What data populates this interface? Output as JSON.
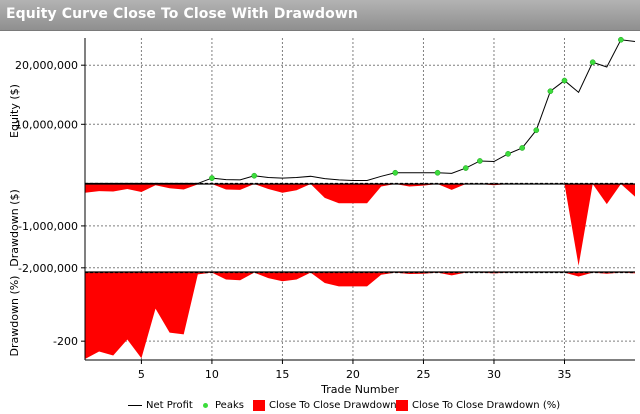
{
  "title": "Equity Curve Close To Close With Drawdown",
  "colors": {
    "net_profit": "#000000",
    "peaks": "#3cdc3c",
    "drawdown_fill": "#ff0000",
    "title_bar": "#a0a0a0",
    "grid": "#7f7f7f"
  },
  "legend": {
    "net_profit": "Net Profit",
    "peaks": "Peaks",
    "dd": "Close To Close Drawdown",
    "dd_pct": "Close To Close Drawdown (%)"
  },
  "chart_data": [
    {
      "type": "line",
      "ylabel": "Equity ($)",
      "yticks": [
        "10,000,000",
        "20,000,000"
      ],
      "ylim": [
        -100000,
        24600000
      ],
      "x": [
        1,
        2,
        3,
        4,
        5,
        6,
        7,
        8,
        9,
        10,
        11,
        12,
        13,
        14,
        15,
        16,
        17,
        18,
        19,
        20,
        21,
        22,
        23,
        24,
        25,
        26,
        27,
        28,
        29,
        30,
        31,
        32,
        33,
        34,
        35,
        36,
        37,
        38,
        39,
        40
      ],
      "series": [
        {
          "name": "Net Profit",
          "values": [
            0,
            0,
            0,
            0,
            0,
            0,
            0,
            0,
            0,
            900000,
            650000,
            600000,
            1300000,
            1000000,
            900000,
            1000000,
            1200000,
            800000,
            600000,
            500000,
            500000,
            1200000,
            1800000,
            1800000,
            1800000,
            1800000,
            1700000,
            2600000,
            3800000,
            3700000,
            5000000,
            6000000,
            9000000,
            15600000,
            17400000,
            15400000,
            20500000,
            19700000,
            24300000,
            24000000
          ]
        },
        {
          "name": "Peaks",
          "x": [
            10,
            13,
            23,
            26,
            28,
            29,
            31,
            32,
            33,
            34,
            35,
            37,
            39
          ],
          "values": [
            900000,
            1300000,
            1800000,
            1800000,
            2600000,
            3800000,
            5000000,
            6000000,
            9000000,
            15600000,
            17400000,
            20500000,
            24300000
          ]
        }
      ]
    },
    {
      "type": "area",
      "ylabel": "Drawdown ($)",
      "yticks": [
        "-1,000,000",
        "-2,000,000"
      ],
      "ylim": [
        -2100000,
        0
      ],
      "x": [
        1,
        2,
        3,
        4,
        5,
        6,
        7,
        8,
        9,
        10,
        11,
        12,
        13,
        14,
        15,
        16,
        17,
        18,
        19,
        20,
        21,
        22,
        23,
        24,
        25,
        26,
        27,
        28,
        29,
        30,
        31,
        32,
        33,
        34,
        35,
        36,
        37,
        38,
        39,
        40
      ],
      "series": [
        {
          "name": "Close To Close Drawdown",
          "values": [
            -210000,
            -170000,
            -180000,
            -120000,
            -190000,
            -30000,
            -100000,
            -130000,
            -10000,
            0,
            -130000,
            -140000,
            0,
            -120000,
            -210000,
            -150000,
            0,
            -330000,
            -460000,
            -460000,
            -460000,
            -60000,
            0,
            -60000,
            -40000,
            0,
            -140000,
            0,
            0,
            -30000,
            0,
            0,
            0,
            0,
            0,
            -1950000,
            0,
            -480000,
            0,
            -300000
          ]
        }
      ]
    },
    {
      "type": "area",
      "ylabel": "Drawdown (%)",
      "yticks": [
        "-200"
      ],
      "xlabel": "Trade Number",
      "xticks": [
        5,
        10,
        15,
        20,
        25,
        30,
        35
      ],
      "ylim": [
        -255,
        2
      ],
      "x": [
        1,
        2,
        3,
        4,
        5,
        6,
        7,
        8,
        9,
        10,
        11,
        12,
        13,
        14,
        15,
        16,
        17,
        18,
        19,
        20,
        21,
        22,
        23,
        24,
        25,
        26,
        27,
        28,
        29,
        30,
        31,
        32,
        33,
        34,
        35,
        36,
        37,
        38,
        39,
        40
      ],
      "series": [
        {
          "name": "Close To Close Drawdown (%)",
          "values": [
            -252,
            -230,
            -242,
            -195,
            -250,
            -105,
            -175,
            -180,
            -5,
            0,
            -20,
            -22,
            0,
            -16,
            -25,
            -20,
            0,
            -30,
            -40,
            -40,
            -40,
            -6,
            0,
            -4,
            -3,
            0,
            -8,
            0,
            0,
            -2,
            0,
            0,
            0,
            0,
            0,
            -11,
            0,
            -3,
            0,
            -2
          ]
        }
      ]
    }
  ]
}
